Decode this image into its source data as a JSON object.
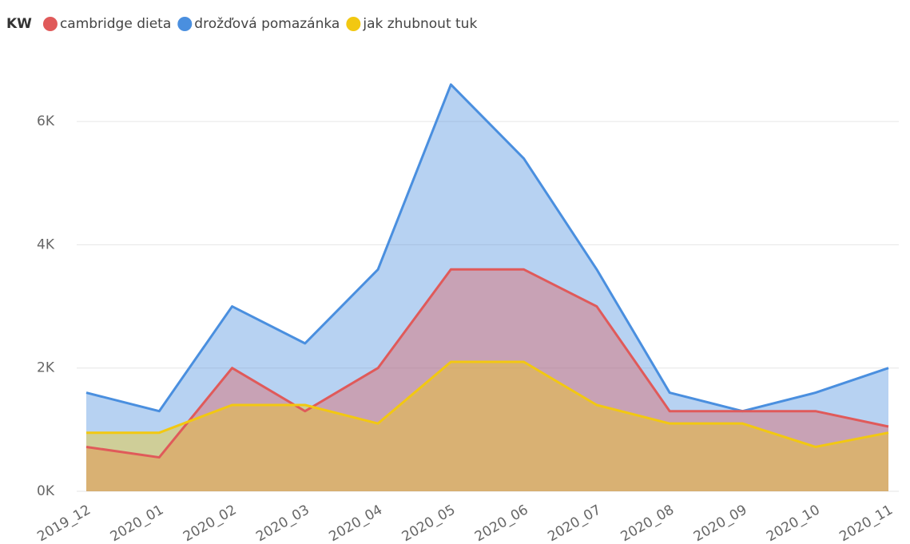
{
  "chart_data": {
    "type": "area",
    "legend_title": "KW",
    "legend": "top-left",
    "grid": true,
    "categories": [
      "2019_12",
      "2020_01",
      "2020_02",
      "2020_03",
      "2020_04",
      "2020_05",
      "2020_06",
      "2020_07",
      "2020_08",
      "2020_09",
      "2020_10",
      "2020_11"
    ],
    "series": [
      {
        "name": "cambridge dieta",
        "color": "#e05a5a",
        "values": [
          720,
          550,
          2000,
          1300,
          2000,
          3600,
          3600,
          3000,
          1300,
          1300,
          1300,
          1050
        ]
      },
      {
        "name": "drožďová pomazánka",
        "color": "#4a8fdf",
        "values": [
          1600,
          1300,
          3000,
          2400,
          3600,
          6600,
          5400,
          3600,
          1600,
          1300,
          1600,
          2000
        ]
      },
      {
        "name": "jak zhubnout tuk",
        "color": "#f2c811",
        "values": [
          950,
          950,
          1400,
          1400,
          1100,
          2100,
          2100,
          1400,
          1100,
          1100,
          720,
          950
        ]
      }
    ],
    "ylim": [
      0,
      7000
    ],
    "yticks": [
      {
        "value": 0,
        "label": "0K"
      },
      {
        "value": 2000,
        "label": "2K"
      },
      {
        "value": 4000,
        "label": "4K"
      },
      {
        "value": 6000,
        "label": "6K"
      }
    ]
  }
}
